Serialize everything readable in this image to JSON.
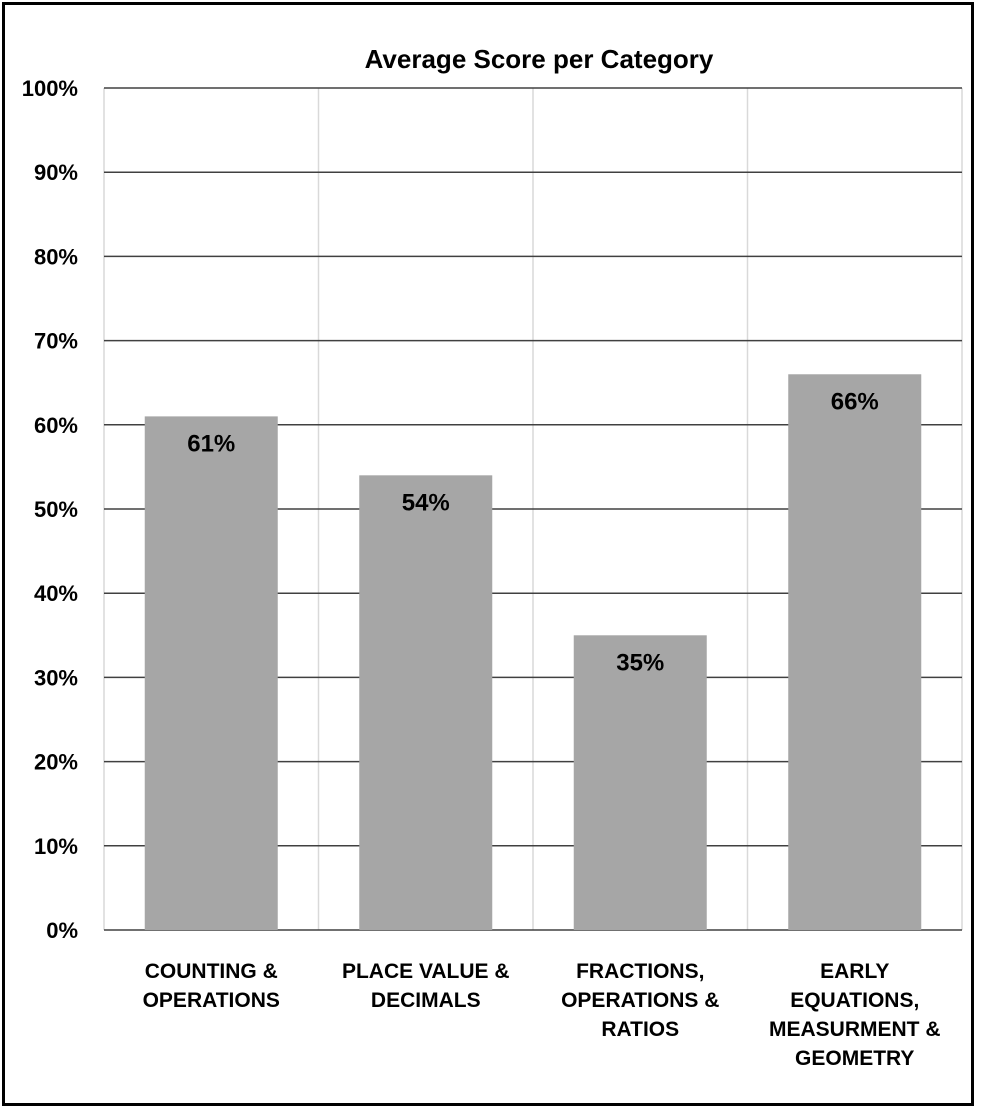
{
  "chart_data": {
    "type": "bar",
    "title": "Average Score per Category",
    "categories": [
      [
        "COUNTING &",
        "OPERATIONS"
      ],
      [
        "PLACE VALUE &",
        "DECIMALS"
      ],
      [
        "FRACTIONS,",
        "OPERATIONS &",
        "RATIOS"
      ],
      [
        "EARLY",
        "EQUATIONS,",
        "MEASURMENT &",
        "GEOMETRY"
      ]
    ],
    "values": [
      61,
      54,
      35,
      66
    ],
    "data_labels": [
      "61%",
      "54%",
      "35%",
      "66%"
    ],
    "ylim": [
      0,
      100
    ],
    "yticks": [
      0,
      10,
      20,
      30,
      40,
      50,
      60,
      70,
      80,
      90,
      100
    ],
    "ytick_labels": [
      "0%",
      "10%",
      "20%",
      "30%",
      "40%",
      "50%",
      "60%",
      "70%",
      "80%",
      "90%",
      "100%"
    ],
    "xlabel": "",
    "ylabel": "",
    "grid": true,
    "legend": "none",
    "colors": {
      "bar": "#a6a6a6",
      "hgrid": "#404040",
      "vgrid": "#d9d9d9",
      "frame": "#000000"
    }
  }
}
